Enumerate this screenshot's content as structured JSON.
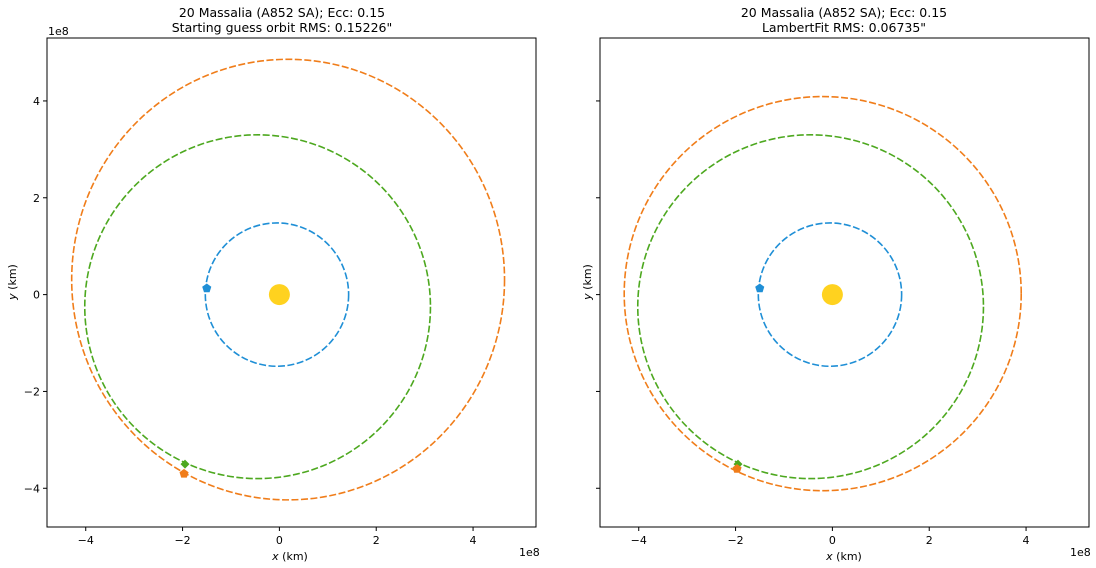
{
  "chart_data": [
    {
      "type": "scatter",
      "title": "20 Massalia (A852 SA); Ecc: 0.15",
      "subtitle": "Starting guess orbit RMS: 0.15226\"",
      "xlabel": "x (km)",
      "ylabel": "y (km)",
      "x_multiplier": "1e8",
      "y_multiplier": "1e8",
      "xlim": [
        -4.8,
        5.3
      ],
      "ylim": [
        -4.8,
        5.3
      ],
      "xticks": [
        "−4",
        "−2",
        "0",
        "2",
        "4"
      ],
      "yticks": [
        "4",
        "2",
        "0",
        "−2",
        "−4"
      ],
      "xtick_values": [
        -4,
        -2,
        0,
        2,
        4
      ],
      "ytick_values": [
        4,
        2,
        0,
        -2,
        -4
      ],
      "grid": false,
      "sun": {
        "x": 0.0,
        "y": 0.0,
        "color": "#ffd21f"
      },
      "orbits": [
        {
          "cx": -0.05,
          "cy": 0.0,
          "rx": 1.48,
          "ry": 1.48,
          "color": "#1f8fd6"
        },
        {
          "cx": -0.45,
          "cy": -0.25,
          "rx": 3.57,
          "ry": 3.55,
          "color": "#4da81f"
        },
        {
          "cx": 0.18,
          "cy": 0.31,
          "rx": 4.47,
          "ry": 4.55,
          "color": "#f07d1a"
        }
      ],
      "markers": [
        {
          "x": -1.5,
          "y": 0.13,
          "shape": "pentagon",
          "color": "#1f8fd6"
        },
        {
          "x": -1.95,
          "y": -3.5,
          "shape": "diamond",
          "color": "#4da81f"
        },
        {
          "x": -1.97,
          "y": -3.7,
          "shape": "pentagon",
          "color": "#f07d1a"
        }
      ]
    },
    {
      "type": "scatter",
      "title": "20 Massalia (A852 SA); Ecc: 0.15",
      "subtitle": "LambertFit RMS: 0.06735\"",
      "xlabel": "x (km)",
      "ylabel": "y (km)",
      "x_multiplier": "1e8",
      "xlim": [
        -4.8,
        5.3
      ],
      "ylim": [
        -4.8,
        5.3
      ],
      "xticks": [
        "−4",
        "−2",
        "0",
        "2",
        "4"
      ],
      "xtick_values": [
        -4,
        -2,
        0,
        2,
        4
      ],
      "ytick_values": [
        4,
        2,
        0,
        -2,
        -4
      ],
      "grid": false,
      "sun": {
        "x": 0.0,
        "y": 0.0,
        "color": "#ffd21f"
      },
      "orbits": [
        {
          "cx": -0.05,
          "cy": 0.0,
          "rx": 1.48,
          "ry": 1.48,
          "color": "#1f8fd6"
        },
        {
          "cx": -0.45,
          "cy": -0.25,
          "rx": 3.57,
          "ry": 3.55,
          "color": "#4da81f"
        },
        {
          "cx": -0.2,
          "cy": 0.02,
          "rx": 4.1,
          "ry": 4.07,
          "color": "#f07d1a"
        }
      ],
      "markers": [
        {
          "x": -1.5,
          "y": 0.13,
          "shape": "pentagon",
          "color": "#1f8fd6"
        },
        {
          "x": -1.95,
          "y": -3.5,
          "shape": "diamond",
          "color": "#4da81f"
        },
        {
          "x": -1.97,
          "y": -3.6,
          "shape": "pentagon",
          "color": "#f07d1a"
        }
      ]
    }
  ]
}
